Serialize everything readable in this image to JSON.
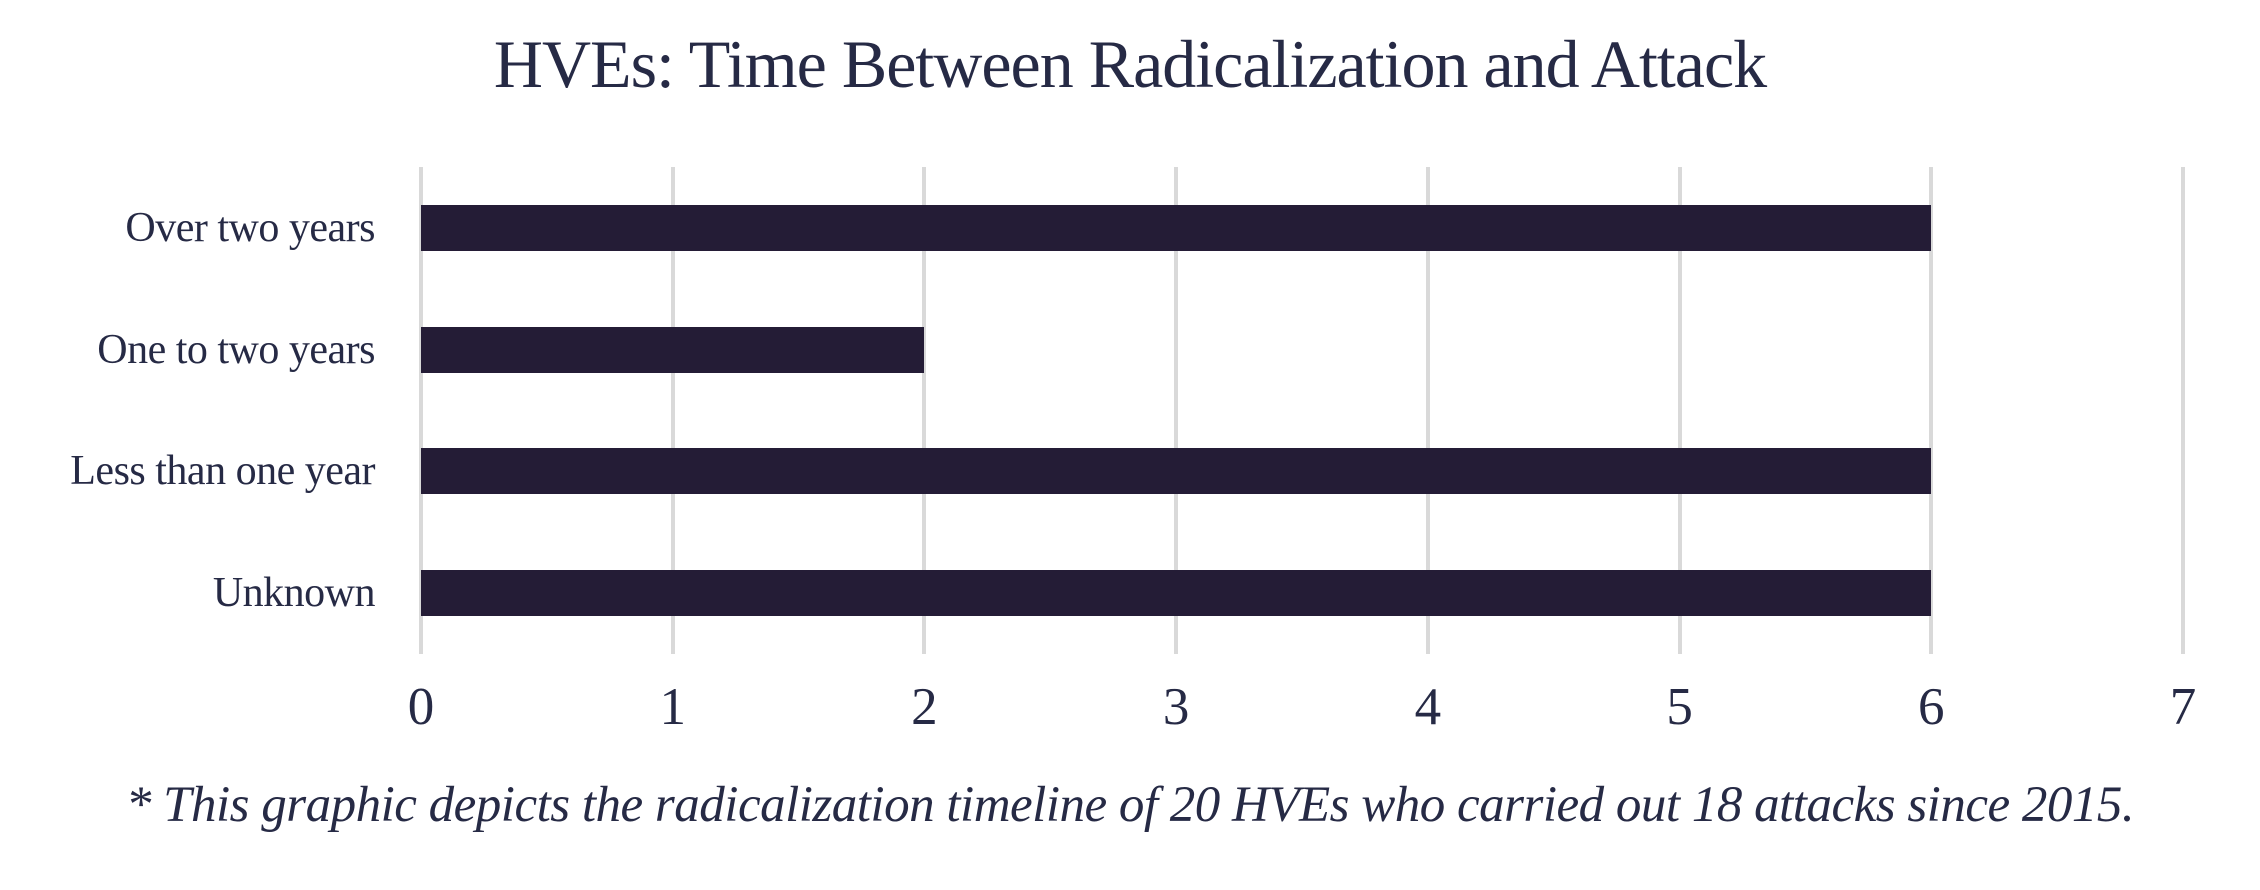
{
  "colors": {
    "bar": "#241c36",
    "text": "#262a45",
    "gridline": "#d9d9d9",
    "background": "#ffffff"
  },
  "chart_data": {
    "type": "bar",
    "orientation": "horizontal",
    "title": "HVEs: Time Between Radicalization and Attack",
    "categories": [
      "Over two years",
      "One to two years",
      "Less than one year",
      "Unknown"
    ],
    "values": [
      6,
      2,
      6,
      6
    ],
    "xlabel": "",
    "ylabel": "",
    "xlim": [
      0,
      7
    ],
    "xticks": [
      0,
      1,
      2,
      3,
      4,
      5,
      6,
      7
    ],
    "grid": true,
    "legend_position": "none",
    "annotation": "* This graphic depicts the radicalization timeline of 20 HVEs who carried out 18 attacks since 2015."
  }
}
